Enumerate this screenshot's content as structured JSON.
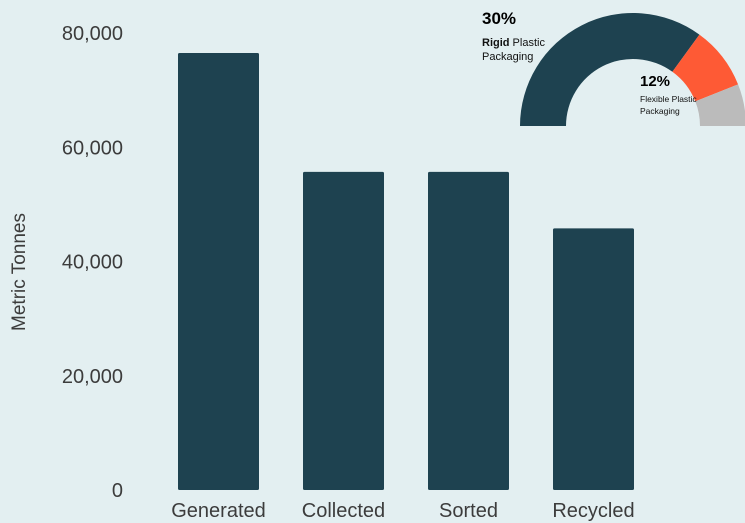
{
  "chart_data": [
    {
      "type": "bar",
      "categories": [
        "Generated",
        "Collected",
        "Sorted",
        "Recycled"
      ],
      "values": [
        76500,
        55700,
        55700,
        45800
      ],
      "title": "",
      "xlabel": "",
      "ylabel": "Metric Tonnes",
      "ylim": [
        0,
        80000
      ],
      "yticks": [
        0,
        20000,
        40000,
        60000,
        80000
      ],
      "ytick_labels": [
        "0",
        "20,000",
        "40,000",
        "60,000",
        "80,000"
      ],
      "grid": false,
      "legend": "none",
      "color": "#1e4250"
    },
    {
      "type": "pie",
      "style": "half-donut",
      "segments": [
        {
          "value": 70,
          "color": "#1e4250",
          "label": ""
        },
        {
          "value": 18,
          "color": "#fe5a35",
          "label": ""
        },
        {
          "value": 12,
          "color": "#bbbbbb",
          "label": ""
        }
      ],
      "annotations": [
        {
          "percent": "30%",
          "bold": "Rigid",
          "rest": " Plastic",
          "line2": "Packaging"
        },
        {
          "percent": "12%",
          "line1": "Flexible Plastic",
          "line2": "Packaging"
        }
      ]
    }
  ]
}
